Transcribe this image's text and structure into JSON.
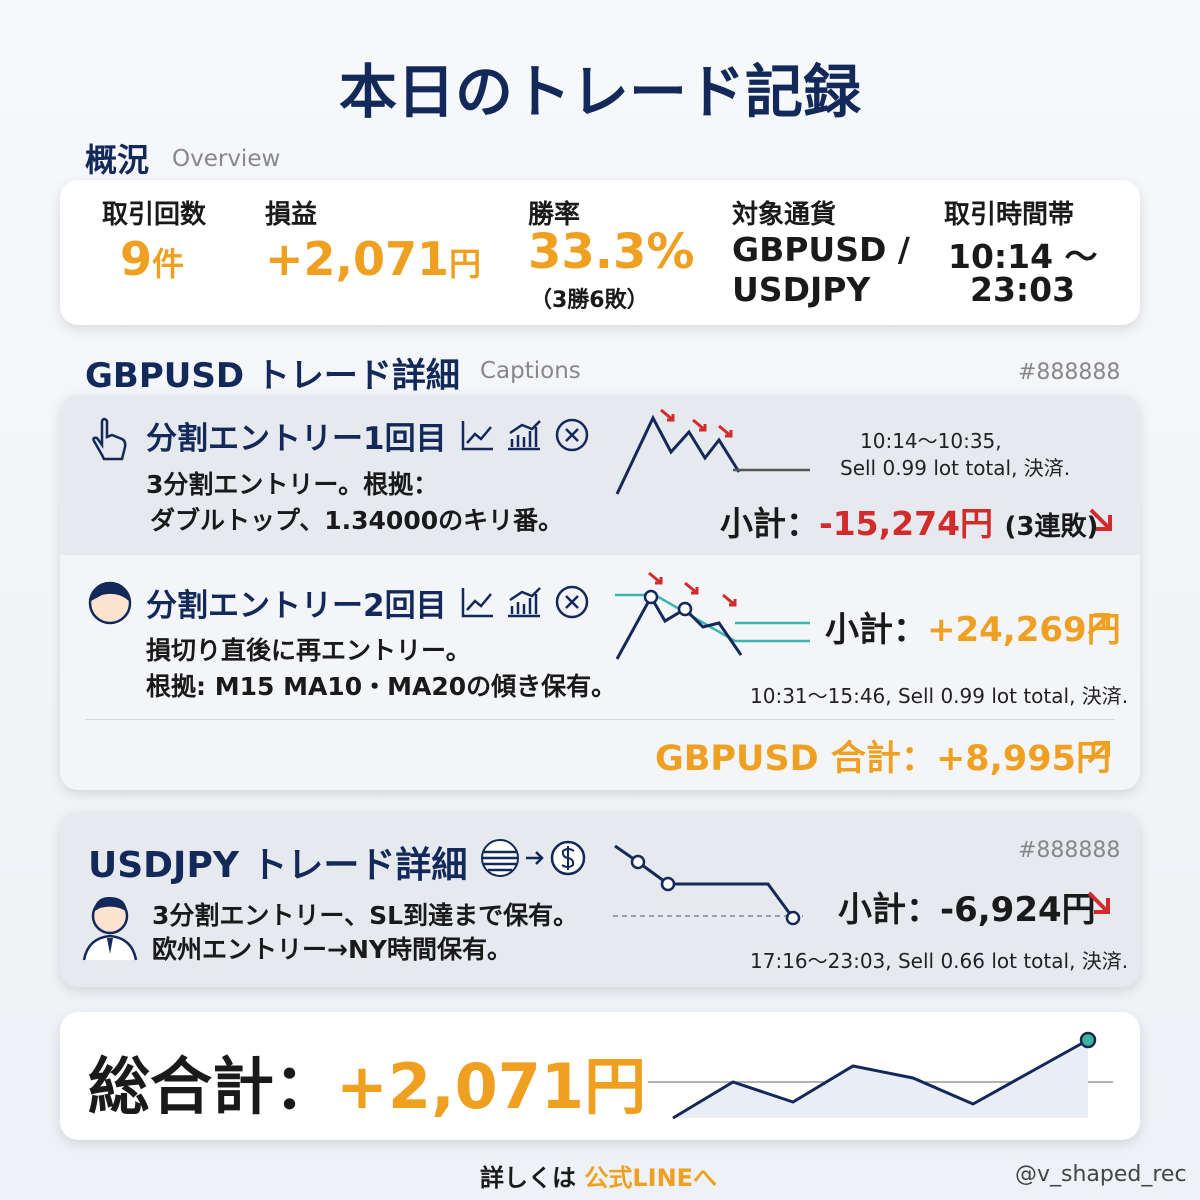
{
  "title": "本日のトレード記録",
  "overview": {
    "heading": "概況",
    "subheading": "Overview",
    "count": {
      "label": "取引回数",
      "value": "9",
      "unit": "件"
    },
    "pnl": {
      "label": "損益",
      "value": "+2,071",
      "unit": "円"
    },
    "winrate": {
      "label": "勝率",
      "value": "33.3%",
      "note": "（3勝6敗）"
    },
    "pairs": {
      "label": "対象通貨",
      "lines": [
        "GBPUSD /",
        "USDJPY"
      ]
    },
    "hours": {
      "label": "取引時間帯",
      "lines": [
        "10:14 ～",
        "23:03"
      ]
    }
  },
  "gbpusd": {
    "heading": "GBPUSD トレード詳細",
    "subheading": "Captions",
    "tag": "#888888",
    "entry1": {
      "title": "分割エントリー1回目",
      "desc": [
        "3分割エントリー。根拠：",
        "ダブルトップ、1.34000のキリ番。"
      ],
      "time": "10:14〜10:35,",
      "detail": "Sell 0.99 lot total, 決済.",
      "subtotal_label": "小計：",
      "subtotal": "-15,274円",
      "note": "(3連敗)"
    },
    "entry2": {
      "title": "分割エントリー2回目",
      "desc": [
        "損切り直後に再エントリー。",
        "根拠: M15 MA10・MA20の傾き保有。"
      ],
      "subtotal_label": "小計：",
      "subtotal": "+24,269円",
      "detail": "10:31〜15:46, Sell 0.99 lot total, 決済."
    },
    "total_label": "GBPUSD 合計：",
    "total": "+8,995円"
  },
  "usdjpy": {
    "heading": "USDJPY トレード詳細",
    "tag": "#888888",
    "desc": [
      "3分割エントリー、SL到達まで保有。",
      "欧州エントリー→NY時間保有。"
    ],
    "subtotal_label": "小計：",
    "subtotal": "-6,924円",
    "detail": "17:16〜23:03, Sell 0.66 lot total, 決済."
  },
  "grand": {
    "label": "総合計：",
    "value": "+2,071円"
  },
  "footer": {
    "prefix": "詳しくは",
    "link": "公式LINEへ",
    "handle": "@v_shaped_rec"
  }
}
